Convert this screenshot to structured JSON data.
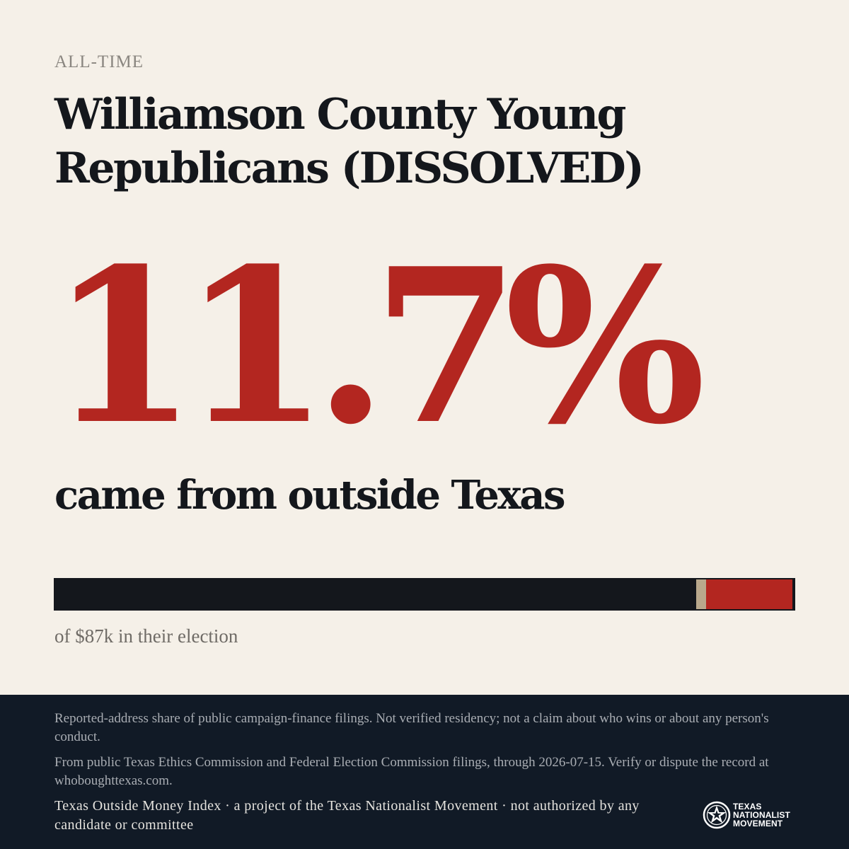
{
  "eyebrow": "ALL-TIME",
  "title": "Williamson County Young Republicans (DISSOLVED)",
  "stat": {
    "value": "11.7%",
    "caption": "came from outside Texas"
  },
  "bar": {
    "inside_share": 0.868,
    "unknown_share": 0.013,
    "outside_share": 0.117,
    "colors": {
      "inside": "#14171c",
      "unknown": "#b9a88c",
      "outside": "#b32620"
    },
    "caption": "of $87k in their election"
  },
  "footer": {
    "disclaimer": "Reported-address share of public campaign-finance filings. Not verified residency; not a claim about who wins or about any person's conduct.",
    "source": "From public Texas Ethics Commission and Federal Election Commission filings, through 2026-07-15. Verify or dispute the record at whoboughttexas.com.",
    "credit": "Texas Outside Money Index · a project of the Texas Nationalist Movement · not authorized by any candidate or committee",
    "logo": {
      "icon": "star-seal-icon",
      "line1": "TEXAS",
      "line2": "NATIONALIST",
      "line3": "MOVEMENT"
    }
  },
  "colors": {
    "background": "#f5f0e8",
    "accent": "#b32620",
    "ink": "#14171c",
    "footer": "#111a26"
  }
}
